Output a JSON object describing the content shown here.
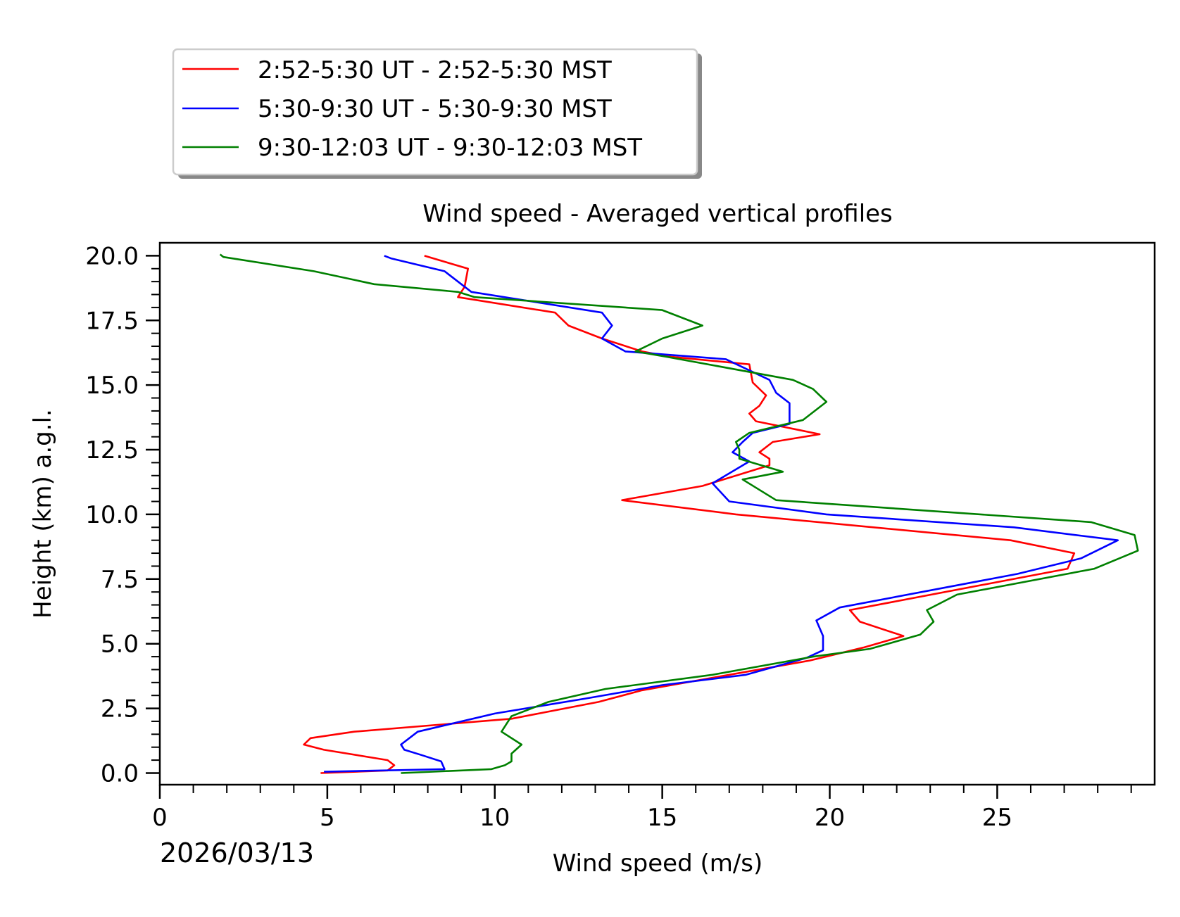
{
  "chart_data": {
    "type": "line",
    "title": "Wind speed - Averaged vertical profiles",
    "xlabel": "Wind speed (m/s)",
    "ylabel": "Height (km) a.g.l.",
    "date_label": "2026/03/13",
    "xlim": [
      0,
      29.7
    ],
    "ylim": [
      -0.45,
      20.5
    ],
    "xticks": [
      0,
      5,
      10,
      15,
      20,
      25
    ],
    "yticks": [
      0.0,
      2.5,
      5.0,
      7.5,
      10.0,
      12.5,
      15.0,
      17.5,
      20.0
    ],
    "ytick_labels": [
      "0.0",
      "2.5",
      "5.0",
      "7.5",
      "10.0",
      "12.5",
      "15.0",
      "17.5",
      "20.0"
    ],
    "grid": false,
    "legend_position": "top-left, above plot",
    "series": [
      {
        "name": "2:52-5:30 UT - 2:52-5:30 MST",
        "color": "#ff0000",
        "points": [
          [
            4.8,
            0.0
          ],
          [
            6.8,
            0.1
          ],
          [
            7.0,
            0.3
          ],
          [
            6.8,
            0.5
          ],
          [
            4.9,
            0.9
          ],
          [
            4.3,
            1.1
          ],
          [
            4.5,
            1.35
          ],
          [
            5.8,
            1.6
          ],
          [
            10.5,
            2.1
          ],
          [
            13.1,
            2.75
          ],
          [
            14.4,
            3.2
          ],
          [
            19.4,
            4.35
          ],
          [
            21.0,
            4.85
          ],
          [
            22.2,
            5.3
          ],
          [
            20.9,
            5.85
          ],
          [
            20.6,
            6.3
          ],
          [
            27.1,
            7.9
          ],
          [
            27.3,
            8.5
          ],
          [
            25.4,
            9.0
          ],
          [
            17.2,
            10.0
          ],
          [
            13.8,
            10.55
          ],
          [
            16.2,
            11.1
          ],
          [
            18.2,
            11.9
          ],
          [
            18.2,
            12.15
          ],
          [
            17.9,
            12.4
          ],
          [
            18.3,
            12.8
          ],
          [
            19.7,
            13.1
          ],
          [
            17.8,
            13.6
          ],
          [
            17.6,
            13.9
          ],
          [
            17.9,
            14.2
          ],
          [
            18.1,
            14.6
          ],
          [
            17.7,
            15.1
          ],
          [
            17.6,
            15.8
          ],
          [
            15.2,
            16.1
          ],
          [
            14.4,
            16.3
          ],
          [
            13.2,
            16.8
          ],
          [
            12.2,
            17.3
          ],
          [
            11.8,
            17.8
          ],
          [
            8.9,
            18.4
          ],
          [
            9.1,
            18.8
          ],
          [
            9.2,
            19.5
          ],
          [
            7.9,
            20.0
          ]
        ]
      },
      {
        "name": "5:30-9:30 UT - 5:30-9:30 MST",
        "color": "#0000ff",
        "points": [
          [
            4.9,
            0.05
          ],
          [
            8.5,
            0.15
          ],
          [
            8.4,
            0.45
          ],
          [
            7.8,
            0.7
          ],
          [
            7.3,
            0.9
          ],
          [
            7.2,
            1.1
          ],
          [
            7.7,
            1.6
          ],
          [
            10.0,
            2.3
          ],
          [
            12.8,
            2.9
          ],
          [
            15.0,
            3.4
          ],
          [
            17.5,
            3.8
          ],
          [
            19.3,
            4.45
          ],
          [
            19.8,
            4.75
          ],
          [
            19.8,
            5.3
          ],
          [
            19.6,
            5.9
          ],
          [
            20.3,
            6.4
          ],
          [
            25.6,
            7.7
          ],
          [
            27.5,
            8.3
          ],
          [
            28.6,
            9.0
          ],
          [
            25.5,
            9.5
          ],
          [
            19.9,
            10.0
          ],
          [
            17.0,
            10.5
          ],
          [
            16.5,
            11.2
          ],
          [
            17.6,
            12.05
          ],
          [
            17.1,
            12.4
          ],
          [
            17.4,
            12.8
          ],
          [
            17.7,
            13.15
          ],
          [
            18.8,
            13.5
          ],
          [
            18.8,
            14.3
          ],
          [
            18.4,
            14.7
          ],
          [
            18.2,
            15.2
          ],
          [
            16.9,
            16.0
          ],
          [
            13.9,
            16.3
          ],
          [
            13.2,
            16.8
          ],
          [
            13.5,
            17.3
          ],
          [
            13.2,
            17.8
          ],
          [
            9.3,
            18.6
          ],
          [
            8.5,
            19.4
          ],
          [
            6.9,
            19.9
          ],
          [
            6.7,
            20.0
          ]
        ]
      },
      {
        "name": "9:30-12:03 UT - 9:30-12:03 MST",
        "color": "#008000",
        "points": [
          [
            7.2,
            0.0
          ],
          [
            9.9,
            0.15
          ],
          [
            10.3,
            0.3
          ],
          [
            10.5,
            0.45
          ],
          [
            10.5,
            0.75
          ],
          [
            10.8,
            1.1
          ],
          [
            10.2,
            1.6
          ],
          [
            10.5,
            2.2
          ],
          [
            11.6,
            2.75
          ],
          [
            13.3,
            3.25
          ],
          [
            16.5,
            3.8
          ],
          [
            19.5,
            4.5
          ],
          [
            21.2,
            4.8
          ],
          [
            22.7,
            5.35
          ],
          [
            23.1,
            5.85
          ],
          [
            22.9,
            6.3
          ],
          [
            23.8,
            6.9
          ],
          [
            27.9,
            7.9
          ],
          [
            29.2,
            8.6
          ],
          [
            29.1,
            9.2
          ],
          [
            27.8,
            9.7
          ],
          [
            18.4,
            10.55
          ],
          [
            17.4,
            11.35
          ],
          [
            18.6,
            11.65
          ],
          [
            17.3,
            12.15
          ],
          [
            17.3,
            12.5
          ],
          [
            17.2,
            12.8
          ],
          [
            17.6,
            13.15
          ],
          [
            19.2,
            13.65
          ],
          [
            19.9,
            14.35
          ],
          [
            19.5,
            14.85
          ],
          [
            18.9,
            15.2
          ],
          [
            15.1,
            16.1
          ],
          [
            14.2,
            16.3
          ],
          [
            15.0,
            16.8
          ],
          [
            16.2,
            17.3
          ],
          [
            15.0,
            17.9
          ],
          [
            9.4,
            18.4
          ],
          [
            8.9,
            18.6
          ],
          [
            6.4,
            18.9
          ],
          [
            4.6,
            19.4
          ],
          [
            1.9,
            19.95
          ],
          [
            1.8,
            20.05
          ]
        ]
      }
    ]
  }
}
